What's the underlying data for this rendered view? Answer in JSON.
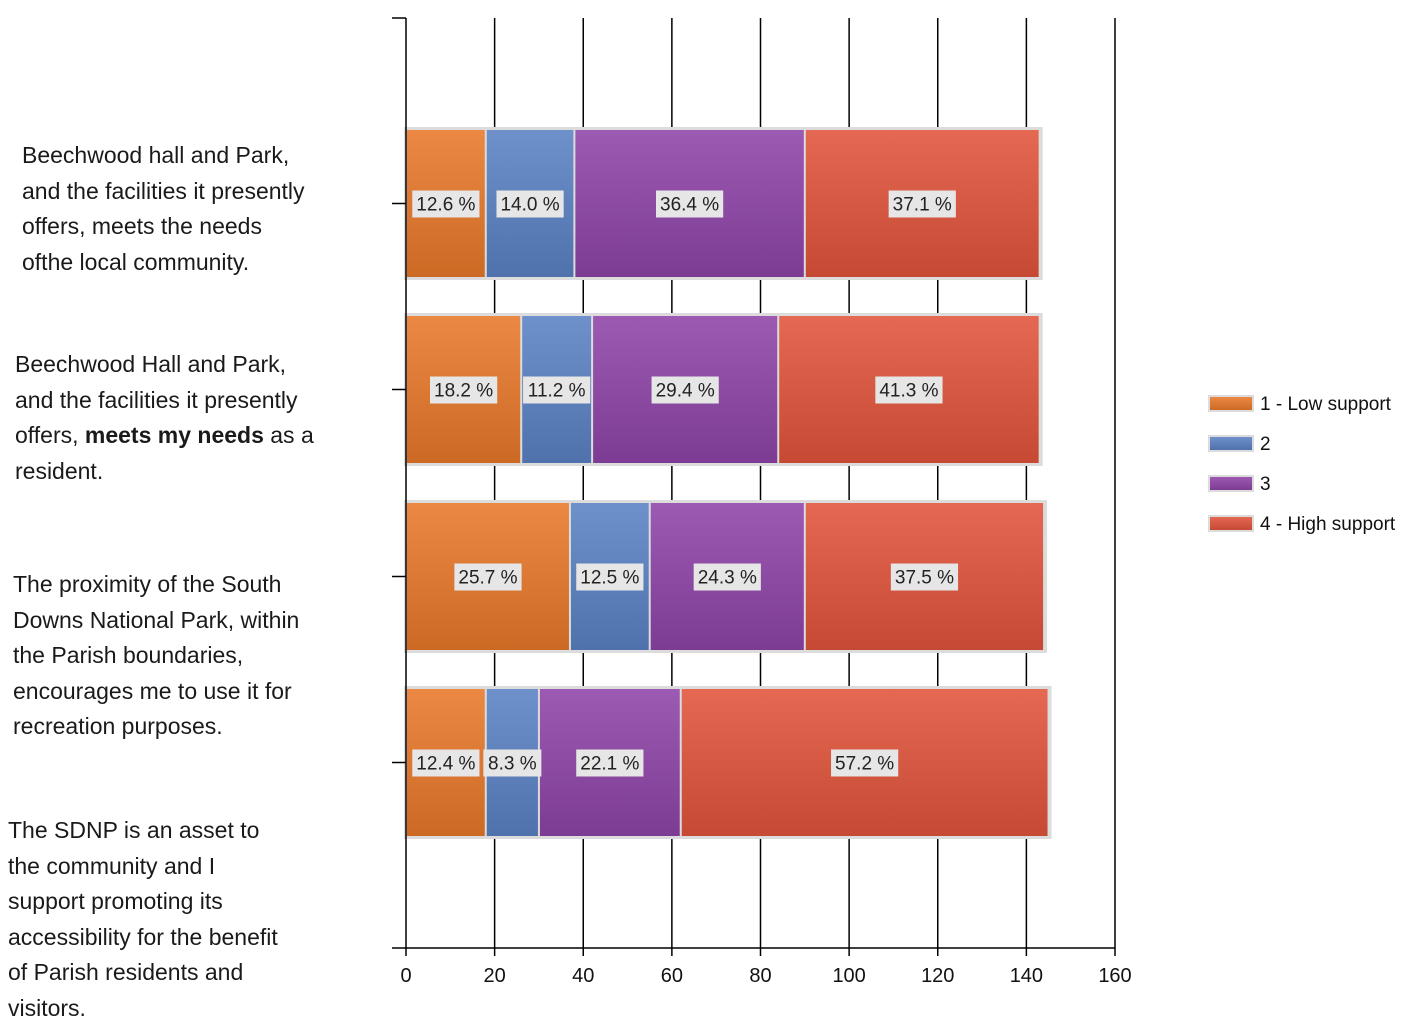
{
  "questions": [
    {
      "parts": [
        {
          "text": "Beechwood hall and Park, and the facilities it presently offers, meets the needs ofthe local community.",
          "bold": false
        }
      ]
    },
    {
      "parts": [
        {
          "text": "Beechwood Hall and Park, and the facilities it presently offers, ",
          "bold": false
        },
        {
          "text": "meets my needs",
          "bold": true
        },
        {
          "text": " as a resident.",
          "bold": false
        }
      ]
    },
    {
      "parts": [
        {
          "text": "The proximity of the South Downs National Park, within the Parish boundaries, encourages me to use it for recreation purposes.",
          "bold": false
        }
      ]
    },
    {
      "parts": [
        {
          "text": "The SDNP is an asset to the community and I support promoting its accessibility for the benefit of Parish residents and visitors.",
          "bold": false
        }
      ]
    }
  ],
  "chart_data": {
    "type": "bar",
    "orientation": "horizontal",
    "stacked": true,
    "xlim": [
      0,
      160
    ],
    "xticks": [
      0,
      20,
      40,
      60,
      80,
      100,
      120,
      140,
      160
    ],
    "xtick_labels": [
      "0",
      "20",
      "40",
      "60",
      "80",
      "100",
      "120",
      "140",
      "160"
    ],
    "grid": true,
    "legend_position": "right",
    "series": [
      {
        "name": "1 - Low support",
        "color": "#e8782a",
        "values": [
          18,
          26,
          37,
          18
        ],
        "labels": [
          "12.6 %",
          "18.2 %",
          "25.7 %",
          "12.4 %"
        ]
      },
      {
        "name": "2",
        "color": "#5b82c4",
        "values": [
          20,
          16,
          18,
          12
        ],
        "labels": [
          "14.0 %",
          "11.2 %",
          "12.5 %",
          "8.3 %"
        ]
      },
      {
        "name": "3",
        "color": "#8e44a8",
        "values": [
          52,
          42,
          35,
          32
        ],
        "labels": [
          "36.4 %",
          "29.4 %",
          "24.3 %",
          "22.1 %"
        ]
      },
      {
        "name": "4 - High support",
        "color": "#e0533a",
        "values": [
          53,
          59,
          54,
          83
        ],
        "labels": [
          "37.1 %",
          "41.3 %",
          "37.5 %",
          "57.2 %"
        ]
      }
    ]
  }
}
